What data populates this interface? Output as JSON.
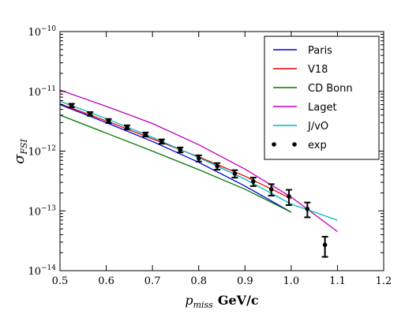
{
  "chart_data": {
    "type": "line",
    "xlabel_var": "p",
    "xlabel_sub": "miss",
    "xlabel_unit": "GeV/c",
    "ylabel_var": "σ",
    "ylabel_sub": "FSI",
    "xlim": [
      0.5,
      1.2
    ],
    "ylim_log10": [
      -14,
      -10
    ],
    "yscale": "log",
    "grid": false,
    "legend_position": "top-right",
    "x_ticks": [
      {
        "value": 0.5,
        "label": "0.5"
      },
      {
        "value": 0.6,
        "label": "0.6"
      },
      {
        "value": 0.7,
        "label": "0.7"
      },
      {
        "value": 0.8,
        "label": "0.8"
      },
      {
        "value": 0.9,
        "label": "0.9"
      },
      {
        "value": 1.0,
        "label": "1.0"
      },
      {
        "value": 1.1,
        "label": "1.1"
      },
      {
        "value": 1.2,
        "label": "1.2"
      }
    ],
    "y_ticks": [
      {
        "exp": -14,
        "base": "10",
        "power": "−14"
      },
      {
        "exp": -13,
        "base": "10",
        "power": "−13"
      },
      {
        "exp": -12,
        "base": "10",
        "power": "−12"
      },
      {
        "exp": -11,
        "base": "10",
        "power": "−11"
      },
      {
        "exp": -10,
        "base": "10",
        "power": "−10"
      }
    ],
    "series": [
      {
        "name": "Paris",
        "color": "#0000dd",
        "x": [
          0.5,
          0.6,
          0.7,
          0.8,
          0.9,
          1.0
        ],
        "y": [
          6e-12,
          3e-12,
          1.45e-12,
          6.5e-13,
          2.6e-13,
          9.5e-14
        ]
      },
      {
        "name": "V18",
        "color": "#ee0000",
        "x": [
          0.5,
          0.6,
          0.7,
          0.8,
          0.9,
          1.0
        ],
        "y": [
          6.2e-12,
          3.2e-12,
          1.6e-12,
          8e-13,
          3.8e-13,
          1.6e-13
        ]
      },
      {
        "name": "CD Bonn",
        "color": "#007700",
        "x": [
          0.5,
          0.6,
          0.7,
          0.8,
          0.9,
          1.0
        ],
        "y": [
          4e-12,
          2e-12,
          1e-12,
          4.9e-13,
          2.3e-13,
          9.5e-14
        ]
      },
      {
        "name": "Laget",
        "color": "#bb00bb",
        "x": [
          0.5,
          0.6,
          0.7,
          0.8,
          0.9,
          1.0,
          1.1
        ],
        "y": [
          1.05e-11,
          5.6e-12,
          2.9e-12,
          1.28e-12,
          5e-13,
          1.7e-13,
          4.5e-14
        ]
      },
      {
        "name": "J/vO",
        "color": "#00bbbb",
        "x": [
          0.5,
          0.6,
          0.7,
          0.8,
          0.9,
          1.0,
          1.1
        ],
        "y": [
          6.8e-12,
          3.5e-12,
          1.7e-12,
          7.8e-13,
          3.4e-13,
          1.3e-13,
          7e-14
        ]
      }
    ],
    "exp": {
      "name": "exp",
      "color": "#000000",
      "x": [
        0.525,
        0.565,
        0.605,
        0.645,
        0.685,
        0.72,
        0.76,
        0.8,
        0.84,
        0.878,
        0.918,
        0.957,
        0.995,
        1.035,
        1.073
      ],
      "y": [
        5.8e-12,
        4.2e-12,
        3.2e-12,
        2.5e-12,
        1.9e-12,
        1.45e-12,
        1.05e-12,
        7.6e-13,
        5.6e-13,
        4.2e-13,
        3.1e-13,
        2.3e-13,
        1.75e-13,
        1.08e-13,
        2.7e-14
      ],
      "yerr": [
        4e-13,
        3e-13,
        2.5e-13,
        2e-13,
        1.5e-13,
        1.2e-13,
        1e-13,
        9e-14,
        7e-14,
        6e-14,
        5e-14,
        5e-14,
        5e-14,
        3e-14,
        1e-14
      ]
    }
  }
}
